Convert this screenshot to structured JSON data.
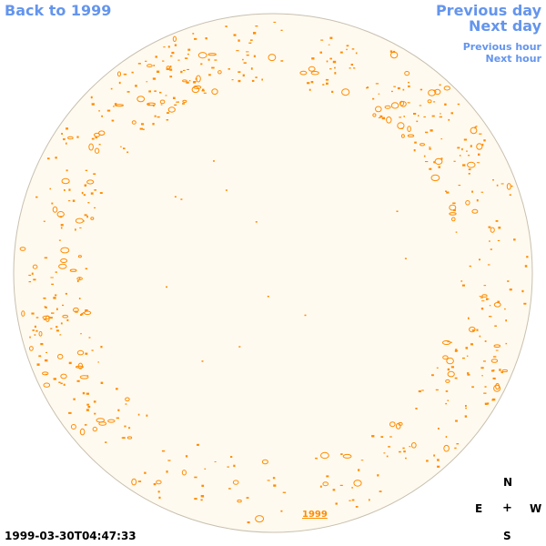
{
  "nav": {
    "back_label": "Back to 1999",
    "previous_day_label": "Previous day",
    "next_day_label": "Next day",
    "previous_hour_label": "Previous hour",
    "next_hour_label": "Next hour"
  },
  "disk": {
    "year_label": "1999",
    "fill_color": "#fffaf0",
    "edge_color": "#c8c0b0",
    "contour_color": "#ff8c00"
  },
  "timestamp": "1999-03-30T04:47:33",
  "compass": {
    "north": "N",
    "east": "E",
    "center": "+",
    "west": "W",
    "south": "S"
  },
  "colors": {
    "link": "#6495ed",
    "text": "#000000"
  }
}
